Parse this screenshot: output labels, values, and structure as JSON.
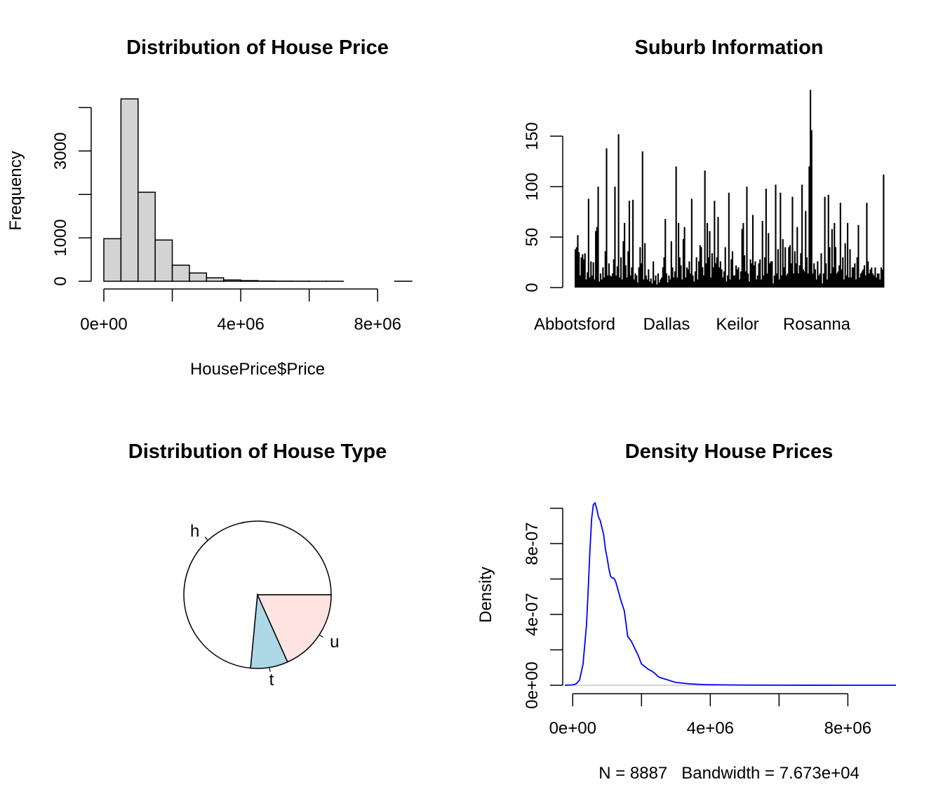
{
  "chart_data": [
    {
      "type": "bar",
      "title": "Distribution of House Price",
      "xlabel": "HousePrice$Price",
      "ylabel": "Frequency",
      "bin_edges": [
        0,
        500000,
        1000000,
        1500000,
        2000000,
        2500000,
        3000000,
        3500000,
        4000000,
        4500000,
        5000000,
        5500000,
        6000000,
        6500000,
        7000000,
        7500000,
        8000000,
        8500000,
        9000000
      ],
      "values": [
        980,
        4200,
        2050,
        950,
        370,
        190,
        80,
        30,
        15,
        6,
        3,
        2,
        1,
        1,
        0,
        0,
        0,
        1
      ],
      "xlim": [
        0,
        9000000
      ],
      "ylim": [
        0,
        4200
      ],
      "x_ticks": [
        0,
        4000000,
        8000000
      ],
      "x_tick_labels": [
        "0e+00",
        "4e+06",
        "8e+06"
      ],
      "y_ticks": [
        0,
        1000,
        3000
      ],
      "y_tick_labels": [
        "0",
        "1000",
        "3000"
      ],
      "y_minor_ticks": [
        2000,
        4000
      ],
      "bar_fill": "#d3d3d3"
    },
    {
      "type": "bar",
      "title": "Suburb Information",
      "xlabel": "",
      "ylabel": "",
      "category_labels_shown": [
        "Abbotsford",
        "Dallas",
        "Keilor",
        "Rosanna"
      ],
      "values": [
        38,
        40,
        52,
        35,
        12,
        30,
        33,
        28,
        34,
        8,
        15,
        88,
        10,
        26,
        12,
        25,
        8,
        56,
        60,
        100,
        6,
        14,
        8,
        20,
        10,
        36,
        138,
        12,
        24,
        12,
        11,
        14,
        28,
        100,
        12,
        21,
        152,
        10,
        30,
        8,
        46,
        64,
        22,
        10,
        36,
        86,
        12,
        20,
        87,
        8,
        14,
        12,
        5,
        20,
        40,
        24,
        135,
        8,
        44,
        12,
        8,
        18,
        6,
        9,
        4,
        26,
        7,
        12,
        3,
        14,
        5,
        8,
        10,
        20,
        30,
        68,
        14,
        5,
        12,
        8,
        46,
        20,
        10,
        16,
        120,
        10,
        64,
        30,
        22,
        8,
        48,
        60,
        10,
        20,
        18,
        26,
        14,
        88,
        12,
        6,
        16,
        30,
        8,
        26,
        42,
        40,
        20,
        12,
        116,
        24,
        64,
        30,
        56,
        10,
        34,
        20,
        86,
        24,
        30,
        70,
        20,
        26,
        18,
        10,
        16,
        40,
        6,
        12,
        94,
        8,
        28,
        36,
        12,
        12,
        22,
        18,
        20,
        8,
        16,
        58,
        64,
        32,
        16,
        100,
        14,
        6,
        28,
        24,
        72,
        22,
        26,
        8,
        12,
        24,
        28,
        8,
        66,
        12,
        30,
        98,
        14,
        54,
        24,
        26,
        26,
        4,
        12,
        102,
        14,
        38,
        8,
        94,
        12,
        48,
        20,
        40,
        12,
        14,
        40,
        42,
        24,
        90,
        14,
        36,
        24,
        60,
        14,
        22,
        34,
        102,
        18,
        16,
        76,
        30,
        14,
        120,
        196,
        156,
        14,
        24,
        18,
        8,
        26,
        12,
        14,
        34,
        4,
        14,
        90,
        24,
        8,
        92,
        40,
        14,
        58,
        20,
        64,
        40,
        14,
        16,
        22,
        84,
        18,
        30,
        8,
        44,
        12,
        64,
        10,
        38,
        10,
        20,
        20,
        24,
        8,
        30,
        62,
        10,
        14,
        16,
        18,
        22,
        12,
        84,
        26,
        14,
        18,
        20,
        14,
        12,
        20,
        10,
        14,
        14,
        8,
        20,
        18,
        112
      ],
      "ylim": [
        0,
        196
      ],
      "y_ticks": [
        0,
        50,
        100,
        150
      ],
      "y_tick_labels": [
        "0",
        "50",
        "100",
        "150"
      ]
    },
    {
      "type": "pie",
      "title": "Distribution of House Type",
      "labels": [
        "h",
        "t",
        "u"
      ],
      "values": [
        73.5,
        8.2,
        18.3
      ],
      "colors": [
        "#ffffff",
        "#add8e6",
        "#ffe4e1"
      ]
    },
    {
      "type": "line",
      "title": "Density House Prices",
      "xlabel": "N = 8887   Bandwidth = 7.673e+04",
      "ylabel": "Density",
      "x": [
        -230000,
        0,
        100000,
        200000,
        300000,
        400000,
        450000,
        500000,
        550000,
        600000,
        650000,
        700000,
        750000,
        800000,
        850000,
        900000,
        950000,
        1000000,
        1050000,
        1100000,
        1150000,
        1200000,
        1250000,
        1300000,
        1350000,
        1400000,
        1500000,
        1600000,
        1700000,
        1800000,
        1900000,
        2000000,
        2100000,
        2200000,
        2300000,
        2400000,
        2500000,
        2600000,
        2800000,
        3000000,
        3200000,
        3400000,
        3600000,
        3800000,
        4000000,
        4500000,
        5000000,
        6000000,
        7000000,
        8000000,
        9000000,
        9400000
      ],
      "y": [
        0,
        2e-09,
        8e-09,
        3e-08,
        1.2e-07,
        3.4e-07,
        5.4e-07,
        7.6e-07,
        9.4e-07,
        1.02e-06,
        1.03e-06,
        9.95e-07,
        9.5e-07,
        9.3e-07,
        8.9e-07,
        8.5e-07,
        7.7e-07,
        7.2e-07,
        6.6e-07,
        6.15e-07,
        6.05e-07,
        6.05e-07,
        5.85e-07,
        5.5e-07,
        5.15e-07,
        4.8e-07,
        4.2e-07,
        2.75e-07,
        2.5e-07,
        2.1e-07,
        1.7e-07,
        1.2e-07,
        1.05e-07,
        9e-08,
        8e-08,
        6.5e-08,
        4.6e-08,
        4e-08,
        2.8e-08,
        1.6e-08,
        1.2e-08,
        8e-09,
        6e-09,
        4e-09,
        3e-09,
        2e-09,
        1e-09,
        5e-10,
        2e-10,
        1e-10,
        1e-10,
        0
      ],
      "xlim": [
        -230000,
        9400000
      ],
      "ylim": [
        0,
        1.03e-06
      ],
      "x_ticks": [
        0,
        4000000,
        8000000
      ],
      "x_tick_labels": [
        "0e+00",
        "4e+06",
        "8e+06"
      ],
      "x_minor_ticks": [
        2000000,
        6000000
      ],
      "y_ticks": [
        0,
        4e-07,
        8e-07
      ],
      "y_tick_labels": [
        "0e+00",
        "4e-07",
        "8e-07"
      ],
      "y_minor_ticks": [
        2e-07,
        6e-07,
        1e-06
      ],
      "line_color": "#0000ff",
      "baseline_color": "#bebebe"
    }
  ]
}
